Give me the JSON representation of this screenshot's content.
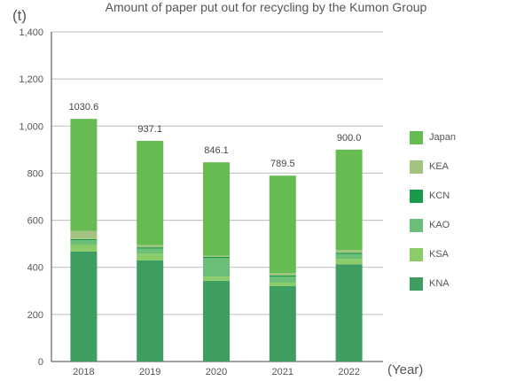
{
  "chart_data": {
    "type": "bar",
    "stacked": true,
    "title": "Amount of paper put out for recycling by the Kumon Group",
    "ylabel": "(t)",
    "xlabel": "(Year)",
    "categories": [
      "2018",
      "2019",
      "2020",
      "2021",
      "2022"
    ],
    "ylim": [
      0,
      1400
    ],
    "yticks": [
      "0",
      "200",
      "400",
      "600",
      "800",
      "1,000",
      "1,200",
      "1,400"
    ],
    "ytick_values": [
      0,
      200,
      400,
      600,
      800,
      1000,
      1200,
      1400
    ],
    "totals": [
      "1030.6",
      "937.1",
      "846.1",
      "789.5",
      "900.0"
    ],
    "total_values": [
      1030.6,
      937.1,
      846.1,
      789.5,
      900.0
    ],
    "grid": true,
    "legend_position": "right",
    "series": [
      {
        "name": "KNA",
        "color": "#3e9e62",
        "values": [
          467,
          430,
          343,
          320,
          413
        ]
      },
      {
        "name": "KSA",
        "color": "#8bcb6a",
        "values": [
          28,
          28,
          18,
          15,
          23
        ]
      },
      {
        "name": "KAO",
        "color": "#6cbf76",
        "values": [
          20,
          22,
          78,
          25,
          20
        ]
      },
      {
        "name": "KCN",
        "color": "#1a9a4a",
        "values": [
          5,
          5,
          5,
          5,
          5
        ]
      },
      {
        "name": "KEA",
        "color": "#a3c480",
        "values": [
          35,
          10,
          5,
          10,
          12
        ]
      },
      {
        "name": "Japan",
        "color": "#66bc51",
        "values": [
          475.6,
          442.1,
          397.1,
          414.5,
          427.0
        ]
      }
    ],
    "legend_order": [
      "Japan",
      "KEA",
      "KCN",
      "KAO",
      "KSA",
      "KNA"
    ]
  }
}
